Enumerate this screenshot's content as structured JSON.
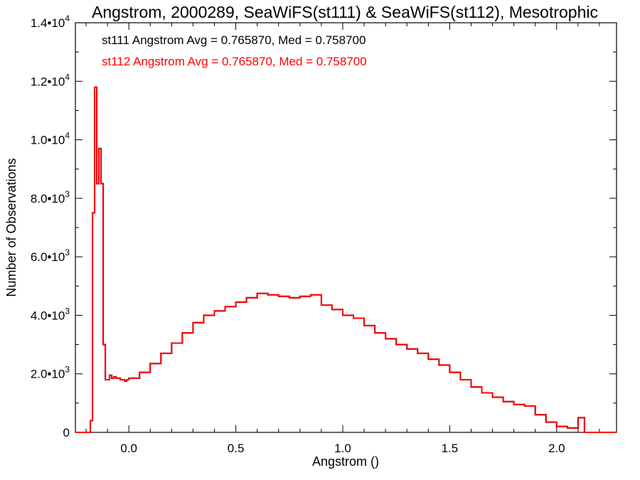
{
  "chart_data": {
    "type": "histogram",
    "title": "Angstrom, 2000289, SeaWiFS(st111) & SeaWiFS(st112), Mesotrophic",
    "xlabel": "Angstrom ()",
    "ylabel": "Number of Observations",
    "xlim": [
      -0.25,
      2.28
    ],
    "ylim": [
      0,
      14000
    ],
    "x_ticks": [
      {
        "value": 0.0,
        "label": "0.0"
      },
      {
        "value": 0.5,
        "label": "0.5"
      },
      {
        "value": 1.0,
        "label": "1.0"
      },
      {
        "value": 1.5,
        "label": "1.5"
      },
      {
        "value": 2.0,
        "label": "2.0"
      }
    ],
    "y_ticks": [
      {
        "value": 0,
        "mant": "0",
        "exp": ""
      },
      {
        "value": 2000,
        "mant": "2.0•10",
        "exp": "3"
      },
      {
        "value": 4000,
        "mant": "4.0•10",
        "exp": "3"
      },
      {
        "value": 6000,
        "mant": "6.0•10",
        "exp": "3"
      },
      {
        "value": 8000,
        "mant": "8.0•10",
        "exp": "3"
      },
      {
        "value": 10000,
        "mant": "1.0•10",
        "exp": "4"
      },
      {
        "value": 12000,
        "mant": "1.2•10",
        "exp": "4"
      },
      {
        "value": 14000,
        "mant": "1.4•10",
        "exp": "4"
      }
    ],
    "annotations": [
      {
        "text": "st111 Angstrom Avg = 0.765870, Med = 0.758700",
        "color": "#000000"
      },
      {
        "text": "st112 Angstrom Avg = 0.765870, Med = 0.758700",
        "color": "#ff0000"
      }
    ],
    "bin_width": 0.01,
    "series": [
      {
        "name": "st111",
        "color": "#000000",
        "x": [
          -0.17,
          -0.16,
          -0.15,
          -0.14,
          -0.13,
          -0.12,
          -0.11,
          -0.1,
          -0.09,
          -0.08,
          -0.07,
          -0.06,
          -0.05,
          -0.04,
          -0.03,
          -0.02,
          -0.01,
          0.0,
          0.05,
          0.1,
          0.15,
          0.2,
          0.25,
          0.3,
          0.35,
          0.4,
          0.45,
          0.5,
          0.55,
          0.6,
          0.65,
          0.7,
          0.75,
          0.8,
          0.85,
          0.9,
          0.95,
          1.0,
          1.05,
          1.1,
          1.15,
          1.2,
          1.25,
          1.3,
          1.35,
          1.4,
          1.45,
          1.5,
          1.55,
          1.6,
          1.65,
          1.7,
          1.75,
          1.8,
          1.85,
          1.9,
          1.95,
          2.0,
          2.05,
          2.1,
          2.13,
          2.14
        ],
        "y": [
          400,
          7500,
          11800,
          8500,
          9700,
          8500,
          3000,
          1800,
          1800,
          1950,
          1850,
          1900,
          1850,
          1850,
          1800,
          1800,
          1750,
          1800,
          1850,
          2050,
          2350,
          2700,
          3050,
          3400,
          3750,
          4000,
          4150,
          4300,
          4450,
          4600,
          4750,
          4700,
          4650,
          4600,
          4650,
          4700,
          4350,
          4200,
          4000,
          3900,
          3650,
          3400,
          3200,
          3000,
          2850,
          2700,
          2500,
          2300,
          2050,
          1800,
          1550,
          1350,
          1200,
          1050,
          950,
          900,
          600,
          350,
          200,
          150,
          500,
          0
        ]
      },
      {
        "name": "st112",
        "color": "#ff0000",
        "x": [
          -0.17,
          -0.16,
          -0.15,
          -0.14,
          -0.13,
          -0.12,
          -0.11,
          -0.1,
          -0.09,
          -0.08,
          -0.07,
          -0.06,
          -0.05,
          -0.04,
          -0.03,
          -0.02,
          -0.01,
          0.0,
          0.05,
          0.1,
          0.15,
          0.2,
          0.25,
          0.3,
          0.35,
          0.4,
          0.45,
          0.5,
          0.55,
          0.6,
          0.65,
          0.7,
          0.75,
          0.8,
          0.85,
          0.9,
          0.95,
          1.0,
          1.05,
          1.1,
          1.15,
          1.2,
          1.25,
          1.3,
          1.35,
          1.4,
          1.45,
          1.5,
          1.55,
          1.6,
          1.65,
          1.7,
          1.75,
          1.8,
          1.85,
          1.9,
          1.95,
          2.0,
          2.05,
          2.1,
          2.13,
          2.14
        ],
        "y": [
          400,
          7500,
          11800,
          8500,
          9700,
          8500,
          3000,
          1800,
          1800,
          1950,
          1850,
          1900,
          1850,
          1850,
          1800,
          1800,
          1750,
          1800,
          1850,
          2050,
          2350,
          2700,
          3050,
          3400,
          3750,
          4000,
          4150,
          4300,
          4450,
          4600,
          4750,
          4700,
          4650,
          4600,
          4650,
          4700,
          4350,
          4200,
          4000,
          3900,
          3650,
          3400,
          3200,
          3000,
          2850,
          2700,
          2500,
          2300,
          2050,
          1800,
          1550,
          1350,
          1200,
          1050,
          950,
          900,
          600,
          350,
          200,
          150,
          500,
          0
        ]
      }
    ]
  }
}
